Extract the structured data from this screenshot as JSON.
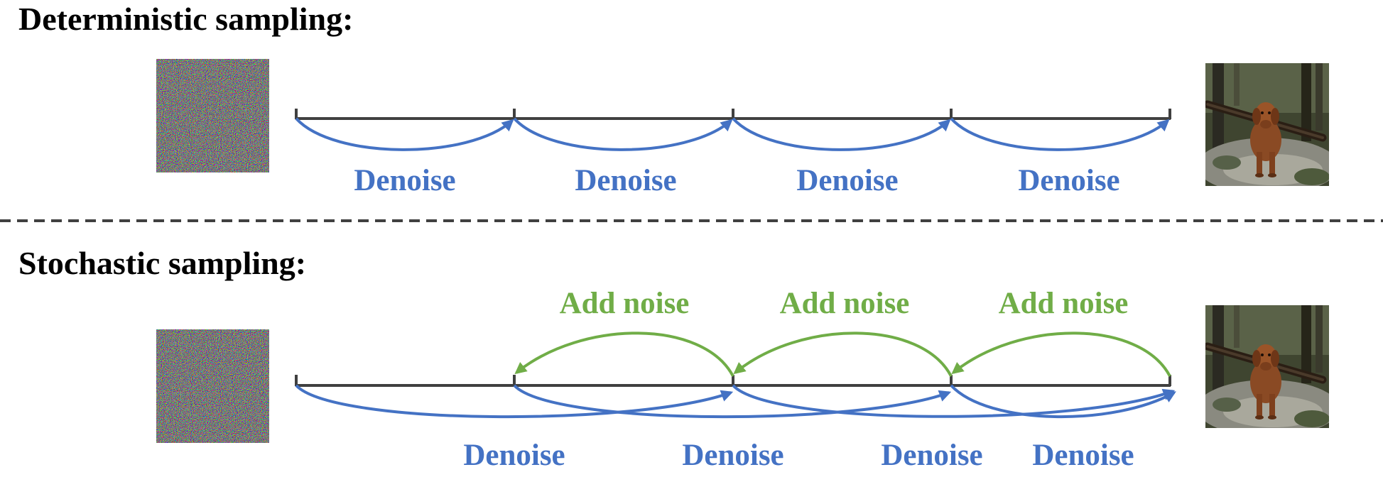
{
  "deterministic": {
    "heading": "Deterministic sampling:",
    "step_labels": [
      "Denoise",
      "Denoise",
      "Denoise",
      "Denoise"
    ]
  },
  "stochastic": {
    "heading": "Stochastic sampling:",
    "denoise_labels": [
      "Denoise",
      "Denoise",
      "Denoise",
      "Denoise"
    ],
    "add_noise_labels": [
      "Add noise",
      "Add noise",
      "Add noise"
    ]
  },
  "images": {
    "start": "noise-image",
    "end": "dog-with-stick-photo"
  },
  "colors": {
    "denoise": "#4472c4",
    "add_noise": "#70ad47",
    "timeline": "#404040",
    "divider": "#404040"
  }
}
